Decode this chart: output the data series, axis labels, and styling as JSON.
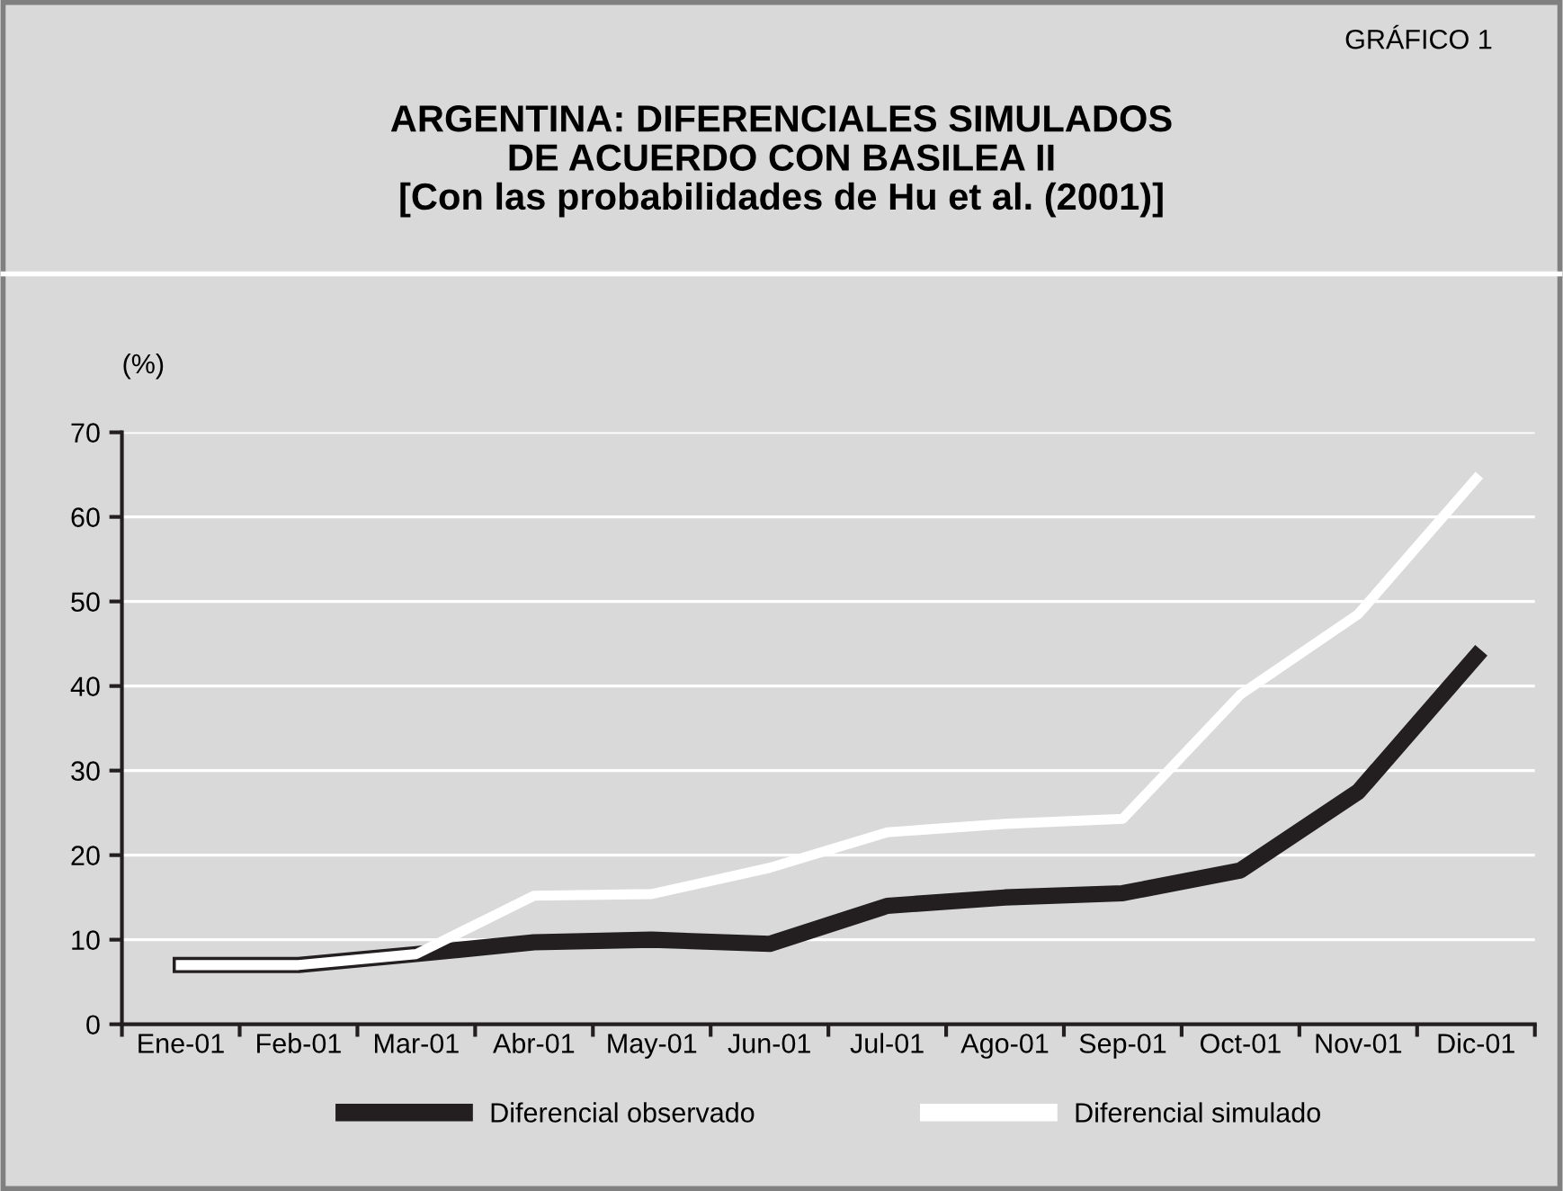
{
  "chart_data": {
    "type": "line",
    "title": "ARGENTINA: DIFERENCIALES SIMULADOS\nDE ACUERDO CON BASILEA II\n[Con las probabilidades de Hu et al. (2001)]",
    "ylabel": "(%)",
    "annotations": [
      "GRÁFICO 1"
    ],
    "categories": [
      "Ene-01",
      "Feb-01",
      "Mar-01",
      "Abr-01",
      "May-01",
      "Jun-01",
      "Jul-01",
      "Ago-01",
      "Sep-01",
      "Oct-01",
      "Nov-01",
      "Dic-01"
    ],
    "series": [
      {
        "name": "Diferencial observado",
        "color": "#231f20",
        "values": [
          7,
          7,
          8.3,
          9.7,
          10,
          9.5,
          14,
          15,
          15.5,
          18.2,
          27.5,
          43.5
        ]
      },
      {
        "name": "Diferencial simulado",
        "color": "#ffffff",
        "values": [
          7,
          7,
          8.3,
          15.2,
          15.4,
          18.5,
          22.7,
          23.7,
          24.3,
          39,
          48.5,
          64.5
        ]
      }
    ],
    "ylim": [
      0,
      70
    ],
    "yticks": [
      0,
      10,
      20,
      30,
      40,
      50,
      60,
      70
    ],
    "grid": "y",
    "legend": "bottom",
    "marker": "none",
    "line_style": "solid"
  }
}
